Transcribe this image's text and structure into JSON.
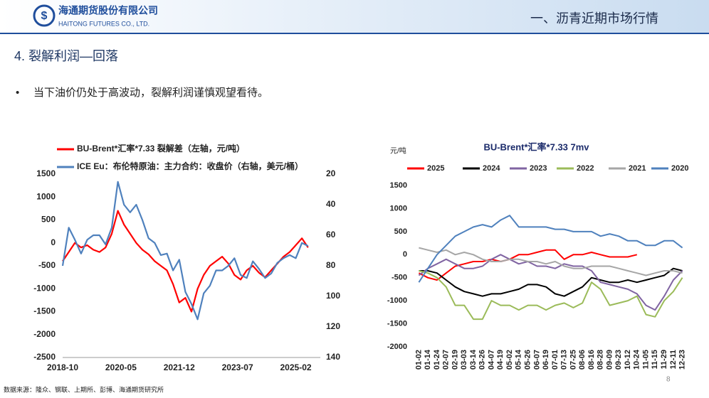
{
  "header": {
    "company_cn": "海通期货股份有限公司",
    "company_en": "HAITONG FUTURES CO., LTD.",
    "title": "一、沥青近期市场行情"
  },
  "section": "4. 裂解利润—回落",
  "bullet": "当下油价仍处于高波动，裂解利润谨慎观望看待。",
  "page_number": "8",
  "source": "数据来源：隆众、钢联、上期所、彭博、海通期货研究所",
  "chart_data": [
    {
      "type": "line",
      "legend": "top-left",
      "x": [
        "2018-10",
        "2018-12",
        "2019-02",
        "2019-04",
        "2019-06",
        "2019-08",
        "2019-10",
        "2019-12",
        "2020-02",
        "2020-04",
        "2020-06",
        "2020-08",
        "2020-10",
        "2020-12",
        "2021-02",
        "2021-04",
        "2021-06",
        "2021-08",
        "2021-10",
        "2021-12",
        "2022-02",
        "2022-04",
        "2022-06",
        "2022-08",
        "2022-10",
        "2022-12",
        "2023-02",
        "2023-04",
        "2023-06",
        "2023-08",
        "2023-10",
        "2023-12",
        "2024-02",
        "2024-04",
        "2024-06",
        "2024-08",
        "2024-10",
        "2024-12",
        "2025-02",
        "2025-04",
        "2025-06"
      ],
      "xlim": [
        "2018-10",
        "2025-10"
      ],
      "xticks": [
        "2018-10",
        "2020-05",
        "2021-12",
        "2023-07",
        "2025-02"
      ],
      "ylim": [
        -2500,
        1500
      ],
      "yticks": [
        -2500,
        -2000,
        -1500,
        -1000,
        -500,
        0,
        500,
        1000,
        1500
      ],
      "y2lim": [
        20,
        140
      ],
      "y2_inverted": true,
      "y2ticks": [
        20,
        40,
        60,
        80,
        100,
        120,
        140
      ],
      "series": [
        {
          "name": "BU-Brent*汇率*7.33 裂解差（左轴，元/吨）",
          "color": "#ff0000",
          "values": [
            -400,
            -200,
            0,
            -100,
            -50,
            -150,
            -200,
            -100,
            200,
            700,
            400,
            200,
            0,
            -150,
            -250,
            -400,
            -500,
            -600,
            -900,
            -1300,
            -1200,
            -1500,
            -1000,
            -700,
            -500,
            -400,
            -300,
            -450,
            -700,
            -800,
            -600,
            -500,
            -650,
            -750,
            -600,
            -450,
            -300,
            -200,
            -50,
            100,
            -100
          ]
        },
        {
          "name": "ICE Eu：布伦特原油：主力合约：收盘价（右轴，美元/桶）",
          "color": "#4f81bd",
          "axis": "y2",
          "values": [
            80,
            55,
            63,
            72,
            63,
            60,
            60,
            66,
            55,
            25,
            40,
            45,
            40,
            50,
            62,
            65,
            73,
            72,
            83,
            76,
            97,
            105,
            115,
            98,
            93,
            83,
            83,
            80,
            75,
            86,
            88,
            77,
            82,
            88,
            85,
            78,
            75,
            73,
            75,
            65,
            67
          ]
        }
      ]
    },
    {
      "type": "line",
      "title": "BU-Brent*汇率*7.33 7mv",
      "y_label": "元/吨",
      "legend": "top",
      "categories": [
        "01-02",
        "01-14",
        "01-24",
        "02-07",
        "02-19",
        "03-03",
        "03-14",
        "03-26",
        "04-07",
        "04-19",
        "05-02",
        "05-14",
        "05-26",
        "06-07",
        "06-19",
        "07-01",
        "07-13",
        "07-25",
        "08-06",
        "08-16",
        "08-28",
        "09-09",
        "09-23",
        "10-12",
        "10-24",
        "11-05",
        "11-15",
        "11-29",
        "12-11",
        "12-23"
      ],
      "ylim": [
        -2000,
        1500
      ],
      "yticks": [
        -2000,
        -1500,
        -1000,
        -500,
        0,
        500,
        1000,
        1500
      ],
      "series": [
        {
          "name": "2025",
          "color": "#ff0000",
          "values": [
            -400,
            -500,
            -550,
            -400,
            -250,
            -200,
            -150,
            -150,
            -100,
            -150,
            -100,
            0,
            0,
            50,
            100,
            100,
            -100,
            0,
            0,
            50,
            0,
            -50,
            -50,
            -50,
            0,
            null,
            null,
            null,
            null,
            null
          ]
        },
        {
          "name": "2024",
          "color": "#000000",
          "values": [
            -350,
            -350,
            -400,
            -550,
            -700,
            -800,
            -850,
            -900,
            -850,
            -850,
            -800,
            -750,
            -650,
            -650,
            -700,
            -850,
            -900,
            -800,
            -700,
            -500,
            -550,
            -600,
            -600,
            -550,
            -600,
            -550,
            -500,
            -450,
            -300,
            -350
          ]
        },
        {
          "name": "2023",
          "color": "#8064a2",
          "values": [
            -450,
            -300,
            -200,
            -100,
            -200,
            -300,
            -300,
            -250,
            -100,
            0,
            -100,
            -200,
            -150,
            -250,
            -250,
            -300,
            -200,
            -250,
            -250,
            -350,
            -600,
            -650,
            -700,
            -750,
            -850,
            -1100,
            -1200,
            -900,
            -550,
            -350
          ]
        },
        {
          "name": "2022",
          "color": "#9bbb59",
          "values": [
            -350,
            -400,
            -500,
            -700,
            -1100,
            -1100,
            -1400,
            -1400,
            -1000,
            -1100,
            -1100,
            -1200,
            -1100,
            -1100,
            -1200,
            -1100,
            -1050,
            -1150,
            -1050,
            -600,
            -750,
            -1100,
            -1050,
            -1000,
            -900,
            -1300,
            -1350,
            -1000,
            -800,
            -500
          ]
        },
        {
          "name": "2021",
          "color": "#a6a6a6",
          "values": [
            150,
            100,
            50,
            100,
            0,
            50,
            0,
            -100,
            -150,
            -150,
            -100,
            -100,
            -150,
            -150,
            -200,
            -150,
            -250,
            -300,
            -300,
            -250,
            -250,
            -250,
            -300,
            -350,
            -400,
            -450,
            -400,
            -350,
            -350,
            -400
          ]
        },
        {
          "name": "2020",
          "color": "#4f81bd",
          "values": [
            -600,
            -300,
            0,
            200,
            400,
            500,
            600,
            650,
            600,
            750,
            850,
            600,
            600,
            600,
            600,
            550,
            550,
            500,
            500,
            500,
            400,
            450,
            400,
            300,
            300,
            200,
            200,
            300,
            300,
            150
          ]
        }
      ]
    }
  ]
}
